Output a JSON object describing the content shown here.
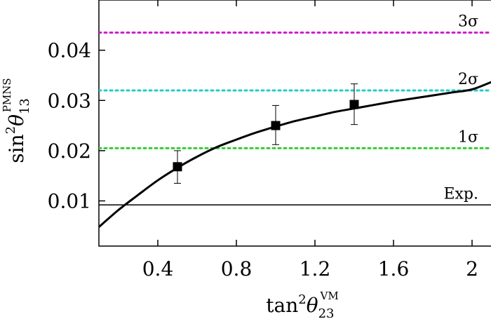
{
  "chart_data": {
    "type": "line",
    "title": "",
    "xlabel": {
      "base": "tan",
      "sup1": "2",
      "greek": "θ",
      "sub": "23",
      "sup2": "VM"
    },
    "ylabel": {
      "base": "sin",
      "sup1": "2",
      "greek": "θ",
      "sub": "13",
      "sup2": "PMNS"
    },
    "xlim": [
      0.1,
      2.1
    ],
    "ylim": [
      0.001,
      0.05
    ],
    "x_ticks": [
      0.4,
      0.8,
      1.2,
      1.6,
      2.0
    ],
    "x_tick_labels": [
      "0.4",
      "0.8",
      "1.2",
      "1.6",
      "2"
    ],
    "y_ticks": [
      0.01,
      0.02,
      0.03,
      0.04
    ],
    "y_tick_labels": [
      "0.01",
      "0.02",
      "0.03",
      "0.04"
    ],
    "grid": false,
    "reference_lines": [
      {
        "label": "Exp.",
        "y": 0.0092,
        "color": "#000000",
        "style": "solid"
      },
      {
        "label": "1σ",
        "y": 0.0205,
        "color": "#33cc33",
        "style": "dotted"
      },
      {
        "label": "2σ",
        "y": 0.032,
        "color": "#22cccc",
        "style": "dotted"
      },
      {
        "label": "3σ",
        "y": 0.0435,
        "color": "#cc22cc",
        "style": "dotted"
      }
    ],
    "curve": {
      "x": [
        0.1,
        0.2,
        0.3,
        0.4,
        0.5,
        0.6,
        0.7,
        0.8,
        0.9,
        1.0,
        1.1,
        1.2,
        1.3,
        1.4,
        1.5,
        1.6,
        1.7,
        1.8,
        1.9,
        2.0,
        2.1
      ],
      "y": [
        0.0048,
        0.0082,
        0.0112,
        0.0141,
        0.0166,
        0.0188,
        0.0207,
        0.0222,
        0.0236,
        0.0248,
        0.0259,
        0.0268,
        0.0277,
        0.0284,
        0.0291,
        0.0298,
        0.0304,
        0.031,
        0.0316,
        0.0322,
        0.0337
      ],
      "color": "#000000"
    },
    "points": [
      {
        "x": 0.5,
        "y": 0.0168,
        "err_low": 0.0135,
        "err_high": 0.02
      },
      {
        "x": 1.0,
        "y": 0.025,
        "err_low": 0.0212,
        "err_high": 0.029
      },
      {
        "x": 1.4,
        "y": 0.0292,
        "err_low": 0.0252,
        "err_high": 0.0333
      }
    ]
  }
}
